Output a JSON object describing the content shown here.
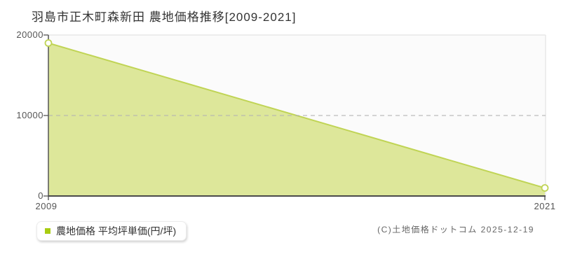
{
  "title": "羽島市正木町森新田 農地価格推移[2009-2021]",
  "legend": {
    "label": "農地価格 平均坪単価(円/坪)"
  },
  "copyright": "(C)土地価格ドットコム 2025-12-19",
  "colors": {
    "series_line": "#c0d455",
    "series_fill": "#dde79a",
    "legend_swatch": "#a8cc11",
    "axis": "#4a4a4a",
    "gridline_light": "#e8e8e8",
    "gridline_dashed": "#b3b3b3",
    "plot_background": "#fbfbfb"
  },
  "chart_data": {
    "type": "area",
    "title": "羽島市正木町森新田 農地価格推移[2009-2021]",
    "x": [
      2009,
      2021
    ],
    "series": [
      {
        "name": "農地価格 平均坪単価(円/坪)",
        "values": [
          19000,
          1000
        ]
      }
    ],
    "xlabel": "",
    "ylabel": "",
    "ylim": [
      0,
      20000
    ],
    "yticks": [
      0,
      10000,
      20000
    ],
    "ytick_labels": [
      "0",
      "10000",
      "20000"
    ],
    "xtick_labels": [
      "2009",
      "2021"
    ],
    "grid": "horizontal, dashed at 10000, solid light at 20000",
    "legend_position": "bottom-left",
    "marker": "open-circle"
  }
}
